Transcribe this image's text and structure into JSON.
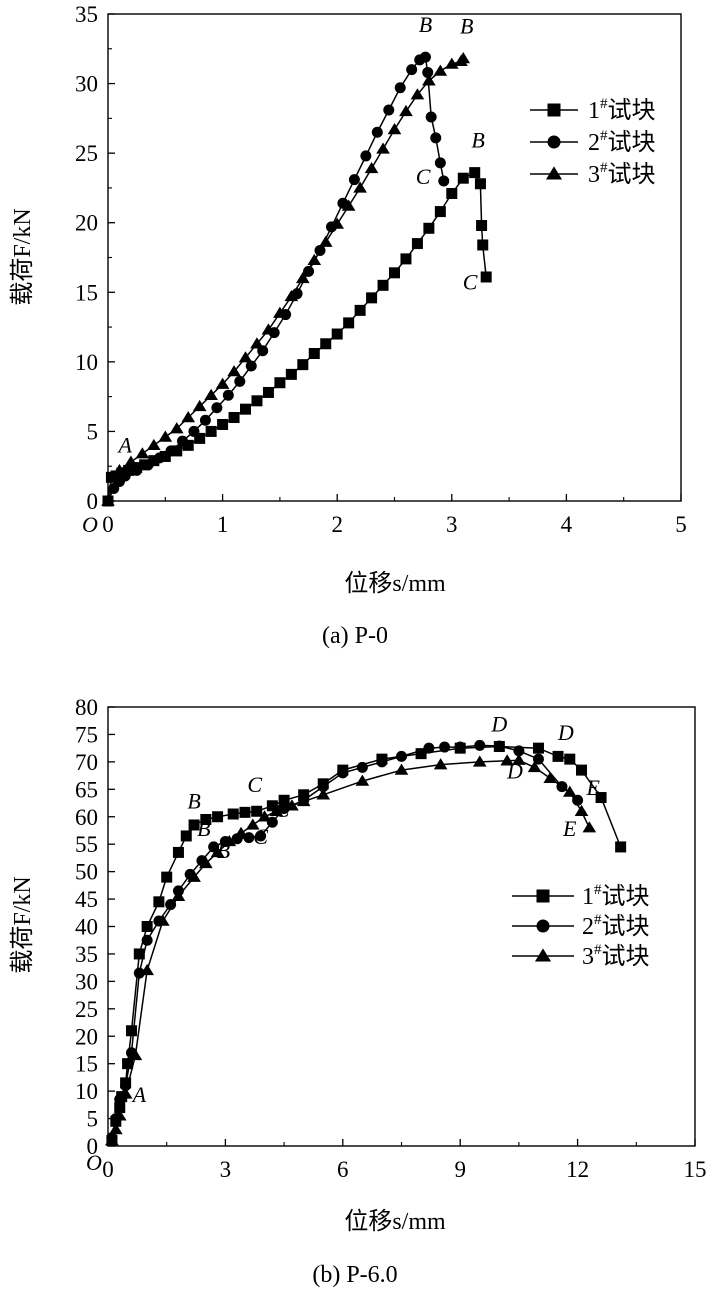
{
  "chart_data": [
    {
      "type": "line",
      "caption": "(a) P-0",
      "xlabel": "位移s/mm",
      "ylabel": "载荷F/kN",
      "origin_label": "O",
      "xlim": [
        0,
        5
      ],
      "ylim": [
        0,
        35
      ],
      "x_ticks": [
        0,
        1,
        2,
        3,
        4,
        5
      ],
      "y_ticks": [
        0,
        5,
        10,
        15,
        20,
        25,
        30,
        35
      ],
      "grid": false,
      "legend_position": "top-right",
      "series": [
        {
          "name": "1#试块",
          "marker": "square",
          "x": [
            0.0,
            0.03,
            0.07,
            0.12,
            0.18,
            0.25,
            0.32,
            0.4,
            0.5,
            0.6,
            0.7,
            0.8,
            0.9,
            1.0,
            1.1,
            1.2,
            1.3,
            1.4,
            1.5,
            1.6,
            1.7,
            1.8,
            1.9,
            2.0,
            2.1,
            2.2,
            2.3,
            2.4,
            2.5,
            2.6,
            2.7,
            2.8,
            2.9,
            3.0,
            3.1,
            3.2,
            3.25,
            3.26,
            3.27,
            3.3
          ],
          "y": [
            0.0,
            1.7,
            1.8,
            2.0,
            2.2,
            2.4,
            2.6,
            2.9,
            3.2,
            3.6,
            4.0,
            4.5,
            5.0,
            5.5,
            6.0,
            6.6,
            7.2,
            7.8,
            8.5,
            9.1,
            9.8,
            10.6,
            11.3,
            12.0,
            12.8,
            13.7,
            14.6,
            15.5,
            16.4,
            17.4,
            18.5,
            19.6,
            20.8,
            22.1,
            23.2,
            23.6,
            22.8,
            19.8,
            18.4,
            16.1
          ]
        },
        {
          "name": "2#试块",
          "marker": "circle",
          "x": [
            0.0,
            0.05,
            0.1,
            0.15,
            0.25,
            0.35,
            0.45,
            0.55,
            0.65,
            0.75,
            0.85,
            0.95,
            1.05,
            1.15,
            1.25,
            1.35,
            1.45,
            1.55,
            1.65,
            1.75,
            1.85,
            1.95,
            2.05,
            2.15,
            2.25,
            2.35,
            2.45,
            2.55,
            2.65,
            2.72,
            2.77,
            2.79,
            2.82,
            2.86,
            2.9,
            2.93
          ],
          "y": [
            0.0,
            0.9,
            1.4,
            1.8,
            2.2,
            2.6,
            3.1,
            3.6,
            4.3,
            5.0,
            5.8,
            6.7,
            7.6,
            8.6,
            9.7,
            10.8,
            12.1,
            13.4,
            14.9,
            16.5,
            18.0,
            19.7,
            21.4,
            23.1,
            24.8,
            26.5,
            28.1,
            29.7,
            31.0,
            31.7,
            31.9,
            30.8,
            27.6,
            26.1,
            24.3,
            23.0
          ]
        },
        {
          "name": "3#试块",
          "marker": "triangle",
          "x": [
            0.0,
            0.1,
            0.2,
            0.3,
            0.4,
            0.5,
            0.6,
            0.7,
            0.8,
            0.9,
            1.0,
            1.1,
            1.2,
            1.3,
            1.4,
            1.5,
            1.6,
            1.7,
            1.8,
            1.9,
            2.0,
            2.1,
            2.2,
            2.3,
            2.4,
            2.5,
            2.6,
            2.7,
            2.8,
            2.9,
            3.0,
            3.08,
            3.1
          ],
          "y": [
            0.0,
            2.2,
            2.8,
            3.4,
            4.0,
            4.6,
            5.2,
            6.0,
            6.8,
            7.6,
            8.4,
            9.3,
            10.3,
            11.3,
            12.3,
            13.5,
            14.7,
            16.0,
            17.3,
            18.6,
            19.9,
            21.2,
            22.5,
            23.9,
            25.3,
            26.7,
            28.0,
            29.2,
            30.2,
            30.9,
            31.4,
            31.6,
            31.8
          ]
        }
      ],
      "annotations": [
        {
          "text": "A",
          "x": 0.15,
          "y": 3.5
        },
        {
          "text": "B",
          "x": 2.77,
          "y": 33.7
        },
        {
          "text": "B",
          "x": 3.13,
          "y": 33.6
        },
        {
          "text": "B",
          "x": 3.23,
          "y": 25.4
        },
        {
          "text": "C",
          "x": 2.75,
          "y": 22.8
        },
        {
          "text": "C",
          "x": 3.16,
          "y": 15.2
        }
      ]
    },
    {
      "type": "line",
      "caption": "(b) P-6.0",
      "xlabel": "位移s/mm",
      "ylabel": "载荷F/kN",
      "origin_label": "O",
      "xlim": [
        0,
        15
      ],
      "ylim": [
        0,
        80
      ],
      "x_ticks": [
        0,
        3,
        6,
        9,
        12,
        15
      ],
      "y_ticks": [
        0,
        5,
        10,
        15,
        20,
        25,
        30,
        35,
        40,
        45,
        50,
        55,
        60,
        65,
        70,
        75,
        80
      ],
      "grid": false,
      "legend_position": "center-right",
      "series": [
        {
          "name": "1#试块",
          "marker": "square",
          "x": [
            0.1,
            0.2,
            0.3,
            0.35,
            0.45,
            0.5,
            0.6,
            0.8,
            1.0,
            1.3,
            1.5,
            1.8,
            2.0,
            2.2,
            2.5,
            2.8,
            3.2,
            3.5,
            3.8,
            4.2,
            4.5,
            5.0,
            5.5,
            6.0,
            7.0,
            8.0,
            9.0,
            10.0,
            11.0,
            11.5,
            11.8,
            12.1,
            12.6,
            13.1
          ],
          "y": [
            1.0,
            4.5,
            7.0,
            9.0,
            11.5,
            15.0,
            21.0,
            35.0,
            40.0,
            44.5,
            49.0,
            53.5,
            56.5,
            58.5,
            59.5,
            60.0,
            60.5,
            60.8,
            61.0,
            62.0,
            63.0,
            64.0,
            66.0,
            68.5,
            70.5,
            71.5,
            72.5,
            72.8,
            72.5,
            71.0,
            70.5,
            68.5,
            63.5,
            54.5
          ]
        },
        {
          "name": "2#试块",
          "marker": "circle",
          "x": [
            0.1,
            0.2,
            0.3,
            0.45,
            0.6,
            0.8,
            1.0,
            1.3,
            1.6,
            1.8,
            2.1,
            2.4,
            2.7,
            3.0,
            3.3,
            3.6,
            3.9,
            4.2,
            4.5,
            5.0,
            5.5,
            6.0,
            6.5,
            7.0,
            7.5,
            8.2,
            8.6,
            9.0,
            9.5,
            10.0,
            10.5,
            11.0,
            11.6,
            12.0
          ],
          "y": [
            1.5,
            5.0,
            8.5,
            11.0,
            17.0,
            31.5,
            37.5,
            41.0,
            44.0,
            46.5,
            49.5,
            52.0,
            54.5,
            55.5,
            56.0,
            56.2,
            56.5,
            59.0,
            61.5,
            63.0,
            65.5,
            68.0,
            69.0,
            70.0,
            71.0,
            72.5,
            72.7,
            72.7,
            73.0,
            72.9,
            72.0,
            70.5,
            65.5,
            63.0
          ]
        },
        {
          "name": "3#试块",
          "marker": "triangle",
          "x": [
            0.1,
            0.2,
            0.3,
            0.45,
            0.7,
            1.0,
            1.4,
            1.8,
            2.2,
            2.5,
            2.8,
            3.1,
            3.4,
            3.7,
            4.0,
            4.3,
            4.7,
            5.0,
            5.5,
            6.5,
            7.5,
            8.5,
            9.5,
            10.2,
            10.5,
            10.9,
            11.3,
            11.8,
            12.1,
            12.3
          ],
          "y": [
            1.0,
            3.0,
            5.5,
            9.5,
            16.5,
            32.0,
            41.0,
            45.5,
            49.0,
            51.5,
            53.5,
            55.5,
            57.0,
            58.5,
            60.0,
            61.0,
            62.0,
            62.8,
            64.0,
            66.5,
            68.5,
            69.5,
            70.0,
            70.2,
            70.3,
            69.0,
            67.0,
            64.5,
            61.0,
            58.0
          ]
        }
      ],
      "annotations": [
        {
          "text": "A",
          "x": 0.8,
          "y": 8.0
        },
        {
          "text": "B",
          "x": 2.2,
          "y": 61.5
        },
        {
          "text": "B",
          "x": 2.45,
          "y": 56.5
        },
        {
          "text": "B",
          "x": 2.95,
          "y": 52.5
        },
        {
          "text": "C",
          "x": 3.75,
          "y": 64.5
        },
        {
          "text": "C",
          "x": 4.45,
          "y": 60.0
        },
        {
          "text": "C",
          "x": 3.9,
          "y": 55.0
        },
        {
          "text": "D",
          "x": 10.0,
          "y": 75.5
        },
        {
          "text": "D",
          "x": 11.7,
          "y": 74.0
        },
        {
          "text": "D",
          "x": 10.4,
          "y": 67.0
        },
        {
          "text": "E",
          "x": 12.4,
          "y": 64.0
        },
        {
          "text": "E",
          "x": 11.8,
          "y": 56.5
        }
      ]
    }
  ]
}
